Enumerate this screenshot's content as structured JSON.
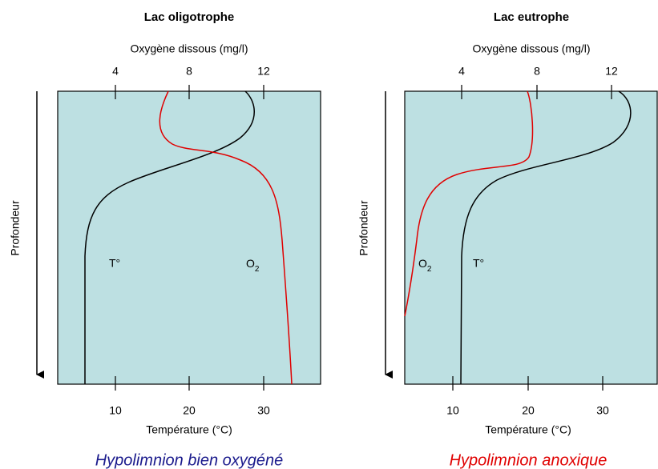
{
  "panels": [
    {
      "title": "Lac oligotrophe",
      "top_axis_label": "Oxygène dissous (mg/l)",
      "top_ticks": [
        "4",
        "8",
        "12"
      ],
      "bottom_axis_label": "Température (°C)",
      "bottom_ticks": [
        "10",
        "20",
        "30"
      ],
      "depth_label": "Profondeur",
      "temp_label": "T°",
      "o2_label": {
        "main": "O",
        "sub": "2"
      },
      "caption": "Hypolimnion bien oxygéné"
    },
    {
      "title": "Lac eutrophe",
      "top_axis_label": "Oxygène dissous (mg/l)",
      "top_ticks": [
        "4",
        "8",
        "12"
      ],
      "bottom_axis_label": "Température (°C)",
      "bottom_ticks": [
        "10",
        "20",
        "30"
      ],
      "depth_label": "Profondeur",
      "temp_label": "T°",
      "o2_label": {
        "main": "O",
        "sub": "2"
      },
      "caption": "Hypolimnion anoxique"
    }
  ]
}
